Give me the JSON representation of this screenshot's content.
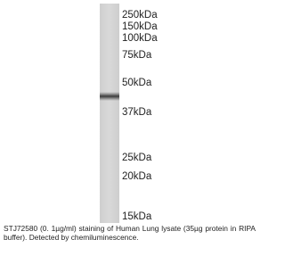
{
  "markers": [
    "250kDa",
    "150kDa",
    "100kDa",
    "75kDa",
    "50kDa",
    "37kDa",
    "25kDa",
    "20kDa",
    "15kDa"
  ],
  "caption": "STJ72580 (0. 1µg/ml) staining of Human Lung lysate (35µg protein in RIPA buffer). Detected by chemiluminescence."
}
